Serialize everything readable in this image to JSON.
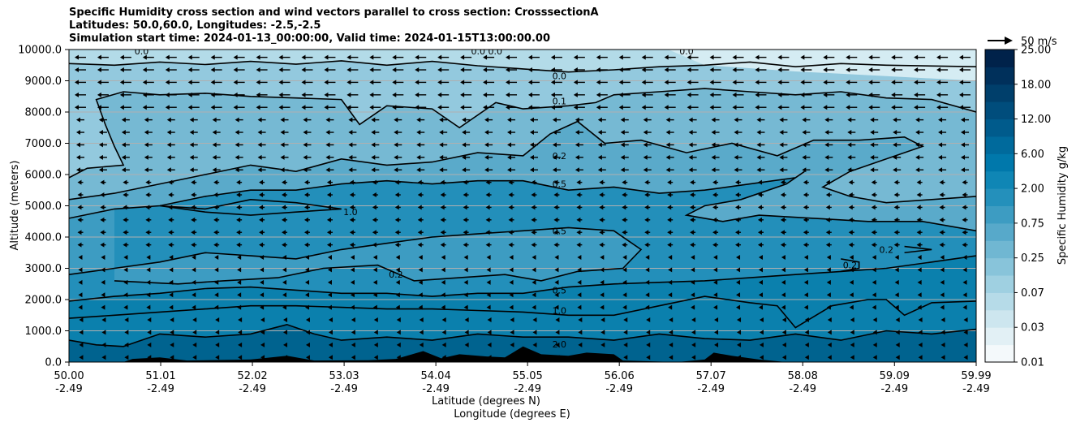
{
  "chart_data": {
    "type": "contour",
    "title_lines": [
      "Specific Humidity cross section and wind vectors parallel to cross section: CrosssectionA",
      "Latitudes: 50.0,60.0, Longitudes: -2.5,-2.5",
      "Simulation start time: 2024-01-13_00:00:00, Valid time: 2024-01-15T13:00:00.00"
    ],
    "ylabel": "Altitude (meters)",
    "xlabel_lat": "Latitude (degrees N)",
    "xlabel_lon": "Longitude (degrees E)",
    "ylim": [
      0,
      10000
    ],
    "yticks": [
      "0.0",
      "1000.0",
      "2000.0",
      "3000.0",
      "4000.0",
      "5000.0",
      "6000.0",
      "7000.0",
      "8000.0",
      "9000.0",
      "10000.0"
    ],
    "xlim": [
      50.0,
      59.99
    ],
    "x_ticks": [
      {
        "lat": "50.00",
        "lon": "-2.49"
      },
      {
        "lat": "51.01",
        "lon": "-2.49"
      },
      {
        "lat": "52.02",
        "lon": "-2.49"
      },
      {
        "lat": "53.03",
        "lon": "-2.49"
      },
      {
        "lat": "54.04",
        "lon": "-2.49"
      },
      {
        "lat": "55.05",
        "lon": "-2.49"
      },
      {
        "lat": "56.06",
        "lon": "-2.49"
      },
      {
        "lat": "57.07",
        "lon": "-2.49"
      },
      {
        "lat": "58.08",
        "lon": "-2.49"
      },
      {
        "lat": "59.09",
        "lon": "-2.49"
      },
      {
        "lat": "59.99",
        "lon": "-2.49"
      }
    ],
    "colorbar": {
      "label": "Specific Humidity g/kg",
      "ticks": [
        "0.01",
        "0.03",
        "0.07",
        "0.25",
        "0.75",
        "2.00",
        "6.00",
        "12.00",
        "18.00",
        "25.00"
      ],
      "colors": [
        "#f4f9fb",
        "#e2f0f5",
        "#cde6ef",
        "#b6dbe8",
        "#9fd0e1",
        "#88c4da",
        "#70b7d2",
        "#57a9ca",
        "#3d9cc2",
        "#2490bb",
        "#0f86b5",
        "#0078ab",
        "#006a9c",
        "#005b8c",
        "#004d7c",
        "#003f6b",
        "#00305b",
        "#00224a"
      ]
    },
    "wind_key": {
      "label": "50 m/s",
      "speed": 50
    },
    "contour_labels": [
      {
        "text": "0.0",
        "x": 55.4,
        "y": 9150
      },
      {
        "text": "0.1",
        "x": 55.4,
        "y": 8350
      },
      {
        "text": "0.2",
        "x": 55.4,
        "y": 6600
      },
      {
        "text": "0.5",
        "x": 55.4,
        "y": 5700
      },
      {
        "text": "1.0",
        "x": 53.1,
        "y": 4800
      },
      {
        "text": "0.5",
        "x": 55.4,
        "y": 4200
      },
      {
        "text": "0.2",
        "x": 53.6,
        "y": 2800
      },
      {
        "text": "0.5",
        "x": 55.4,
        "y": 2300
      },
      {
        "text": "1.0",
        "x": 55.4,
        "y": 1650
      },
      {
        "text": "2.0",
        "x": 55.4,
        "y": 570
      },
      {
        "text": "0.2",
        "x": 58.6,
        "y": 3100
      },
      {
        "text": "0.2",
        "x": 59.0,
        "y": 3600
      },
      {
        "text": "0.0",
        "x": 50.8,
        "y": 9950
      },
      {
        "text": "0.0 0.0",
        "x": 54.6,
        "y": 9950
      },
      {
        "text": "0.0",
        "x": 56.8,
        "y": 9950
      }
    ],
    "contours": [
      {
        "level": "0.0",
        "points": [
          [
            50.0,
            9550
          ],
          [
            50.5,
            9500
          ],
          [
            51.0,
            9600
          ],
          [
            51.5,
            9520
          ],
          [
            52.0,
            9620
          ],
          [
            52.5,
            9530
          ],
          [
            53.0,
            9640
          ],
          [
            53.5,
            9500
          ],
          [
            54.0,
            9620
          ],
          [
            54.5,
            9480
          ],
          [
            55.0,
            9380
          ],
          [
            55.5,
            9280
          ],
          [
            56.0,
            9350
          ],
          [
            56.5,
            9450
          ],
          [
            57.0,
            9500
          ],
          [
            57.5,
            9600
          ],
          [
            58.0,
            9450
          ],
          [
            58.5,
            9550
          ],
          [
            59.0,
            9500
          ],
          [
            59.99,
            9450
          ]
        ]
      },
      {
        "level": "0.1",
        "points": [
          [
            50.0,
            5900
          ],
          [
            50.2,
            6200
          ],
          [
            50.6,
            6300
          ],
          [
            50.5,
            6900
          ],
          [
            50.4,
            7600
          ],
          [
            50.3,
            8400
          ],
          [
            50.6,
            8650
          ],
          [
            51.0,
            8550
          ],
          [
            51.5,
            8600
          ],
          [
            52.0,
            8500
          ],
          [
            52.5,
            8450
          ],
          [
            53.0,
            8400
          ],
          [
            53.2,
            7600
          ],
          [
            53.5,
            8200
          ],
          [
            54.0,
            8100
          ],
          [
            54.3,
            7500
          ],
          [
            54.7,
            8300
          ],
          [
            55.0,
            8100
          ],
          [
            55.5,
            8200
          ],
          [
            55.8,
            8300
          ],
          [
            56.0,
            8550
          ],
          [
            56.5,
            8650
          ],
          [
            57.0,
            8750
          ],
          [
            57.5,
            8650
          ],
          [
            58.0,
            8550
          ],
          [
            58.5,
            8650
          ],
          [
            59.0,
            8450
          ],
          [
            59.5,
            8400
          ],
          [
            59.99,
            8000
          ]
        ]
      },
      {
        "level": "0.2",
        "points": [
          [
            50.0,
            5200
          ],
          [
            50.5,
            5400
          ],
          [
            51.0,
            5700
          ],
          [
            51.5,
            6000
          ],
          [
            52.0,
            6300
          ],
          [
            52.5,
            6100
          ],
          [
            53.0,
            6500
          ],
          [
            53.5,
            6300
          ],
          [
            54.0,
            6400
          ],
          [
            54.5,
            6700
          ],
          [
            55.0,
            6600
          ],
          [
            55.3,
            7300
          ],
          [
            55.6,
            7700
          ],
          [
            55.9,
            7000
          ],
          [
            56.3,
            7100
          ],
          [
            56.8,
            6700
          ],
          [
            57.3,
            7000
          ],
          [
            57.8,
            6600
          ],
          [
            58.2,
            7100
          ],
          [
            58.7,
            7100
          ],
          [
            59.2,
            7200
          ],
          [
            59.4,
            6900
          ],
          [
            59.0,
            6500
          ],
          [
            58.6,
            6100
          ],
          [
            58.3,
            5600
          ],
          [
            58.6,
            5300
          ],
          [
            59.0,
            5100
          ],
          [
            59.5,
            5200
          ],
          [
            59.99,
            5300
          ]
        ]
      },
      {
        "level": "0.5",
        "points": [
          [
            50.0,
            4600
          ],
          [
            50.5,
            4900
          ],
          [
            51.0,
            5000
          ],
          [
            51.5,
            5300
          ],
          [
            52.0,
            5500
          ],
          [
            52.5,
            5500
          ],
          [
            53.0,
            5700
          ],
          [
            53.5,
            5800
          ],
          [
            54.0,
            5700
          ],
          [
            54.5,
            5800
          ],
          [
            55.0,
            5800
          ],
          [
            55.5,
            5500
          ],
          [
            56.0,
            5600
          ],
          [
            56.5,
            5400
          ],
          [
            57.0,
            5500
          ],
          [
            57.5,
            5700
          ],
          [
            58.0,
            5900
          ],
          [
            58.1,
            6100
          ],
          [
            57.9,
            5700
          ],
          [
            57.4,
            5200
          ],
          [
            57.0,
            5000
          ],
          [
            56.8,
            4700
          ],
          [
            57.2,
            4500
          ],
          [
            57.6,
            4700
          ],
          [
            58.2,
            4600
          ],
          [
            58.8,
            4500
          ],
          [
            59.4,
            4500
          ],
          [
            59.99,
            4200
          ]
        ]
      },
      {
        "level": "1.0",
        "points": [
          [
            51.0,
            5000
          ],
          [
            51.5,
            4900
          ],
          [
            52.0,
            5200
          ],
          [
            52.5,
            5100
          ],
          [
            53.0,
            4900
          ],
          [
            52.5,
            4800
          ],
          [
            52.0,
            4700
          ],
          [
            51.5,
            4800
          ],
          [
            51.0,
            5000
          ]
        ]
      },
      {
        "level": "0.5",
        "points": [
          [
            50.0,
            2800
          ],
          [
            50.5,
            3000
          ],
          [
            51.0,
            3200
          ],
          [
            51.5,
            3500
          ],
          [
            52.0,
            3400
          ],
          [
            52.5,
            3300
          ],
          [
            53.0,
            3600
          ],
          [
            53.5,
            3800
          ],
          [
            54.0,
            4000
          ],
          [
            54.5,
            4100
          ],
          [
            55.0,
            4200
          ],
          [
            55.5,
            4300
          ],
          [
            56.0,
            4200
          ],
          [
            56.3,
            3600
          ],
          [
            56.1,
            3000
          ],
          [
            55.6,
            2900
          ],
          [
            55.2,
            2600
          ],
          [
            54.8,
            2800
          ],
          [
            54.3,
            2700
          ],
          [
            53.8,
            2600
          ],
          [
            53.4,
            3100
          ],
          [
            52.8,
            3000
          ],
          [
            52.3,
            2700
          ],
          [
            51.7,
            2600
          ],
          [
            51.2,
            2500
          ],
          [
            50.5,
            2600
          ]
        ]
      },
      {
        "level": "0.5",
        "points": [
          [
            50.0,
            1950
          ],
          [
            50.5,
            2100
          ],
          [
            51.0,
            2200
          ],
          [
            51.5,
            2350
          ],
          [
            52.0,
            2400
          ],
          [
            52.5,
            2300
          ],
          [
            53.0,
            2200
          ],
          [
            53.5,
            2200
          ],
          [
            54.0,
            2100
          ],
          [
            54.5,
            2200
          ],
          [
            55.0,
            2200
          ],
          [
            55.5,
            2400
          ],
          [
            56.0,
            2500
          ],
          [
            56.5,
            2550
          ],
          [
            57.0,
            2600
          ],
          [
            57.5,
            2700
          ],
          [
            58.0,
            2800
          ],
          [
            58.5,
            2900
          ],
          [
            59.0,
            3000
          ],
          [
            59.5,
            3200
          ],
          [
            59.99,
            3400
          ]
        ]
      },
      {
        "level": "1.0",
        "points": [
          [
            50.0,
            1400
          ],
          [
            50.5,
            1500
          ],
          [
            51.0,
            1600
          ],
          [
            51.5,
            1700
          ],
          [
            52.0,
            1800
          ],
          [
            52.5,
            1800
          ],
          [
            53.0,
            1750
          ],
          [
            53.5,
            1700
          ],
          [
            54.0,
            1700
          ],
          [
            54.5,
            1650
          ],
          [
            55.0,
            1600
          ],
          [
            55.5,
            1500
          ],
          [
            56.0,
            1500
          ],
          [
            56.5,
            1800
          ],
          [
            57.0,
            2100
          ],
          [
            57.5,
            1900
          ],
          [
            57.8,
            1800
          ],
          [
            58.0,
            1100
          ],
          [
            58.4,
            1800
          ],
          [
            58.8,
            2000
          ],
          [
            59.0,
            2000
          ],
          [
            59.2,
            1500
          ],
          [
            59.5,
            1900
          ],
          [
            59.99,
            1950
          ]
        ]
      },
      {
        "level": "2.0",
        "points": [
          [
            50.0,
            700
          ],
          [
            50.3,
            550
          ],
          [
            50.6,
            500
          ],
          [
            51.0,
            900
          ],
          [
            51.5,
            800
          ],
          [
            52.0,
            900
          ],
          [
            52.4,
            1200
          ],
          [
            52.7,
            900
          ],
          [
            53.0,
            700
          ],
          [
            53.5,
            800
          ],
          [
            54.0,
            700
          ],
          [
            54.5,
            900
          ],
          [
            55.0,
            800
          ],
          [
            55.5,
            800
          ],
          [
            56.0,
            700
          ],
          [
            56.5,
            900
          ],
          [
            57.0,
            750
          ],
          [
            57.5,
            700
          ],
          [
            58.0,
            900
          ],
          [
            58.5,
            700
          ],
          [
            59.0,
            1000
          ],
          [
            59.5,
            900
          ],
          [
            59.99,
            1050
          ]
        ]
      }
    ],
    "terrain": [
      [
        50.0,
        0
      ],
      [
        50.6,
        0
      ],
      [
        50.7,
        100
      ],
      [
        51.0,
        150
      ],
      [
        51.3,
        50
      ],
      [
        52.0,
        80
      ],
      [
        52.4,
        200
      ],
      [
        52.7,
        50
      ],
      [
        53.3,
        60
      ],
      [
        53.6,
        100
      ],
      [
        53.9,
        350
      ],
      [
        54.1,
        120
      ],
      [
        54.3,
        250
      ],
      [
        54.6,
        180
      ],
      [
        54.8,
        150
      ],
      [
        55.0,
        500
      ],
      [
        55.2,
        250
      ],
      [
        55.5,
        200
      ],
      [
        55.7,
        300
      ],
      [
        56.0,
        250
      ],
      [
        56.1,
        50
      ],
      [
        56.7,
        0
      ],
      [
        57.0,
        80
      ],
      [
        57.1,
        300
      ],
      [
        57.3,
        200
      ],
      [
        57.6,
        80
      ],
      [
        57.9,
        0
      ],
      [
        59.99,
        0
      ]
    ]
  }
}
